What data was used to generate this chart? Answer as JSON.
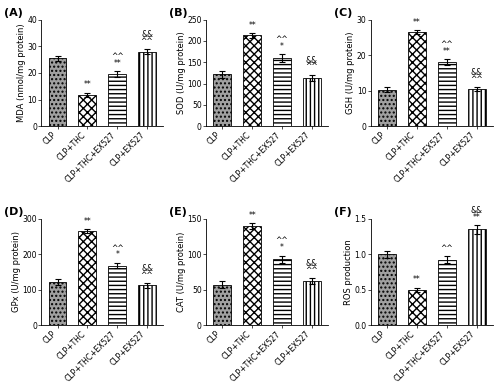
{
  "panels": [
    {
      "label": "A",
      "ylabel": "MDA (nmol/mg protein)",
      "ylim": [
        0,
        40
      ],
      "yticks": [
        0,
        10,
        20,
        30,
        40
      ],
      "values": [
        25.5,
        11.8,
        19.5,
        28.0
      ],
      "errors": [
        1.0,
        0.8,
        1.2,
        1.0
      ],
      "ann_top": [
        "",
        "**",
        "^^",
        "&&"
      ],
      "ann_bot": [
        "",
        "",
        "**",
        "^^"
      ]
    },
    {
      "label": "B",
      "ylabel": "SOD (U/mg protein)",
      "ylim": [
        0,
        250
      ],
      "yticks": [
        0,
        50,
        100,
        150,
        200,
        250
      ],
      "values": [
        122,
        213,
        160,
        113
      ],
      "errors": [
        8,
        5,
        10,
        8
      ],
      "ann_top": [
        "",
        "**",
        "^^",
        "&&"
      ],
      "ann_bot": [
        "",
        "",
        "*",
        "^^"
      ]
    },
    {
      "label": "C",
      "ylabel": "GSH (U/mg protein)",
      "ylim": [
        0,
        30
      ],
      "yticks": [
        0,
        10,
        20,
        30
      ],
      "values": [
        10.3,
        26.5,
        18.0,
        10.5
      ],
      "errors": [
        0.8,
        0.5,
        0.8,
        0.5
      ],
      "ann_top": [
        "",
        "**",
        "^^",
        "&&"
      ],
      "ann_bot": [
        "",
        "",
        "**",
        "^^"
      ]
    },
    {
      "label": "D",
      "ylabel": "GPx (U/mg protein)",
      "ylim": [
        0,
        300
      ],
      "yticks": [
        0,
        100,
        200,
        300
      ],
      "values": [
        122,
        265,
        168,
        112
      ],
      "errors": [
        8,
        5,
        8,
        6
      ],
      "ann_top": [
        "",
        "**",
        "^^",
        "&&"
      ],
      "ann_bot": [
        "",
        "",
        "*",
        "^^"
      ]
    },
    {
      "label": "E",
      "ylabel": "CAT (U/mg protein)",
      "ylim": [
        0,
        150
      ],
      "yticks": [
        0,
        50,
        100,
        150
      ],
      "values": [
        57,
        140,
        93,
        62
      ],
      "errors": [
        5,
        4,
        5,
        4
      ],
      "ann_top": [
        "",
        "**",
        "^^",
        "&&"
      ],
      "ann_bot": [
        "",
        "",
        "*",
        "^^"
      ]
    },
    {
      "label": "F",
      "ylabel": "ROS production",
      "ylim": [
        0,
        1.5
      ],
      "yticks": [
        0.0,
        0.5,
        1.0,
        1.5
      ],
      "values": [
        1.0,
        0.5,
        0.92,
        1.35
      ],
      "errors": [
        0.05,
        0.03,
        0.05,
        0.06
      ],
      "ann_top": [
        "",
        "**",
        "^^",
        "&&"
      ],
      "ann_bot": [
        "",
        "",
        "",
        "**"
      ]
    }
  ],
  "categories": [
    "CLP",
    "CLP+THC",
    "CLP+THC+EX527",
    "CLP+EX527"
  ],
  "bar_face_colors": [
    "#a0a0a0",
    "#ffffff",
    "#ffffff",
    "#ffffff"
  ],
  "bar_edgecolor": "#000000",
  "background_color": "#ffffff",
  "fontsize_label": 6.0,
  "fontsize_tick": 5.5,
  "fontsize_ann": 6.0,
  "fontsize_panel": 8.0
}
